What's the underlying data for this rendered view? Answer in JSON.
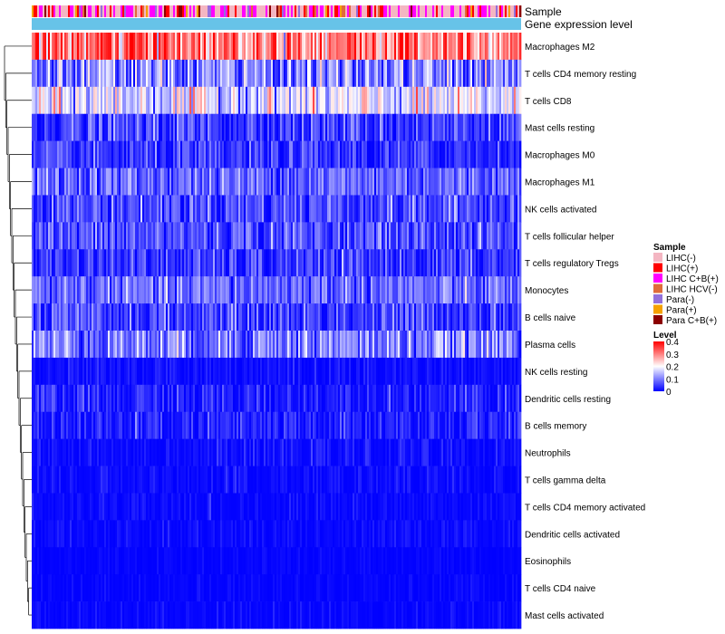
{
  "chart_data": {
    "type": "heatmap",
    "title": "",
    "annotation_tracks": [
      {
        "label": "Sample"
      },
      {
        "label": "Gene expression level"
      }
    ],
    "rows": [
      {
        "label": "Macrophages M2",
        "mean": 0.31,
        "sd": 0.07
      },
      {
        "label": "T cells CD4 memory resting",
        "mean": 0.1,
        "sd": 0.06
      },
      {
        "label": "T cells CD8",
        "mean": 0.17,
        "sd": 0.06
      },
      {
        "label": "Mast cells resting",
        "mean": 0.05,
        "sd": 0.04
      },
      {
        "label": "Macrophages M0",
        "mean": 0.035,
        "sd": 0.035
      },
      {
        "label": "Macrophages M1",
        "mean": 0.08,
        "sd": 0.04
      },
      {
        "label": "NK cells activated",
        "mean": 0.06,
        "sd": 0.04
      },
      {
        "label": "T cells follicular helper",
        "mean": 0.06,
        "sd": 0.04
      },
      {
        "label": "T cells regulatory  Tregs",
        "mean": 0.04,
        "sd": 0.035
      },
      {
        "label": "Monocytes",
        "mean": 0.08,
        "sd": 0.04
      },
      {
        "label": "B cells naive",
        "mean": 0.05,
        "sd": 0.04
      },
      {
        "label": "Plasma cells",
        "mean": 0.1,
        "sd": 0.05
      },
      {
        "label": "NK cells resting",
        "mean": 0.01,
        "sd": 0.015
      },
      {
        "label": "Dendritic cells resting",
        "mean": 0.02,
        "sd": 0.03
      },
      {
        "label": "B cells memory",
        "mean": 0.02,
        "sd": 0.03
      },
      {
        "label": "Neutrophils",
        "mean": 0.01,
        "sd": 0.015
      },
      {
        "label": "T cells gamma delta",
        "mean": 0.005,
        "sd": 0.015
      },
      {
        "label": "T cells CD4 memory activated",
        "mean": 0.005,
        "sd": 0.012
      },
      {
        "label": "Dendritic cells activated",
        "mean": 0.004,
        "sd": 0.012
      },
      {
        "label": "Eosinophils",
        "mean": 0.002,
        "sd": 0.006
      },
      {
        "label": "T cells CD4 naive",
        "mean": 0.002,
        "sd": 0.008
      },
      {
        "label": "Mast cells activated",
        "mean": 0.003,
        "sd": 0.012
      }
    ],
    "n_samples": 270,
    "color_scale": {
      "min": 0,
      "max": 0.4,
      "low_color": "#0000ff",
      "mid_color": "#ffffff",
      "high_color": "#ff0000",
      "midpoint": 0.2
    },
    "sample_legend": {
      "title": "Sample",
      "entries": [
        {
          "label": "LIHC(-)",
          "color": "#f4b6c2"
        },
        {
          "label": "LIHC(+)",
          "color": "#ff0000"
        },
        {
          "label": "LIHC C+B(+)",
          "color": "#ff00ff"
        },
        {
          "label": "LIHC HCV(-)",
          "color": "#e06c3a"
        },
        {
          "label": "Para(-)",
          "color": "#9370db"
        },
        {
          "label": "Para(+)",
          "color": "#f5a100"
        },
        {
          "label": "Para C+B(+)",
          "color": "#8b0000"
        }
      ],
      "sample_weights": [
        0.42,
        0.16,
        0.26,
        0.04,
        0.04,
        0.04,
        0.04
      ]
    },
    "level_legend": {
      "title": "Level",
      "ticks": [
        "0.4",
        "0.3",
        "0.2",
        "0.1",
        "0"
      ]
    },
    "expression_track_color": "#67c3e8"
  }
}
